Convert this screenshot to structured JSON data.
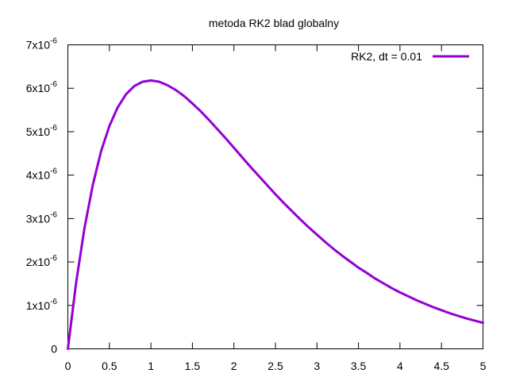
{
  "chart_data": {
    "type": "line",
    "title": "metoda  RK2 blad globalny",
    "xlabel": "",
    "ylabel": "",
    "xlim": [
      0,
      5
    ],
    "ylim": [
      0,
      7e-06
    ],
    "grid": false,
    "legend_position": "top-right",
    "x_ticks": [
      {
        "value": 0,
        "label": "0"
      },
      {
        "value": 0.5,
        "label": "0.5"
      },
      {
        "value": 1,
        "label": "1"
      },
      {
        "value": 1.5,
        "label": "1.5"
      },
      {
        "value": 2,
        "label": "2"
      },
      {
        "value": 2.5,
        "label": "2.5"
      },
      {
        "value": 3,
        "label": "3"
      },
      {
        "value": 3.5,
        "label": "3.5"
      },
      {
        "value": 4,
        "label": "4"
      },
      {
        "value": 4.5,
        "label": "4.5"
      },
      {
        "value": 5,
        "label": "5"
      }
    ],
    "y_ticks": [
      {
        "value": 0,
        "mantissa": "0",
        "exp": ""
      },
      {
        "value": 1e-06,
        "mantissa": "1x10",
        "exp": "-6"
      },
      {
        "value": 2e-06,
        "mantissa": "2x10",
        "exp": "-6"
      },
      {
        "value": 3e-06,
        "mantissa": "3x10",
        "exp": "-6"
      },
      {
        "value": 4e-06,
        "mantissa": "4x10",
        "exp": "-6"
      },
      {
        "value": 5e-06,
        "mantissa": "5x10",
        "exp": "-6"
      },
      {
        "value": 6e-06,
        "mantissa": "6x10",
        "exp": "-6"
      },
      {
        "value": 7e-06,
        "mantissa": "7x10",
        "exp": "-6"
      }
    ],
    "series": [
      {
        "name": "RK2, dt = 0.01",
        "color": "#9400d3",
        "x": [
          0,
          0.1,
          0.2,
          0.3,
          0.4,
          0.5,
          0.6,
          0.7,
          0.8,
          0.9,
          1.0,
          1.1,
          1.2,
          1.3,
          1.4,
          1.5,
          1.6,
          1.7,
          1.8,
          1.9,
          2.0,
          2.1,
          2.2,
          2.3,
          2.4,
          2.5,
          2.6,
          2.7,
          2.8,
          2.9,
          3.0,
          3.1,
          3.2,
          3.3,
          3.4,
          3.5,
          3.6,
          3.7,
          3.8,
          3.9,
          4.0,
          4.1,
          4.2,
          4.3,
          4.4,
          4.5,
          4.6,
          4.7,
          4.8,
          4.9,
          5.0
        ],
        "y": [
          0,
          1.53e-06,
          2.78e-06,
          3.77e-06,
          4.55e-06,
          5.13e-06,
          5.56e-06,
          5.86e-06,
          6.05e-06,
          6.15e-06,
          6.18e-06,
          6.15e-06,
          6.07e-06,
          5.96e-06,
          5.82e-06,
          5.65e-06,
          5.47e-06,
          5.27e-06,
          5.06e-06,
          4.85e-06,
          4.63e-06,
          4.41e-06,
          4.19e-06,
          3.98e-06,
          3.77e-06,
          3.56e-06,
          3.36e-06,
          3.17e-06,
          2.98e-06,
          2.8e-06,
          2.63e-06,
          2.46e-06,
          2.3e-06,
          2.15e-06,
          2.01e-06,
          1.87e-06,
          1.75e-06,
          1.62e-06,
          1.51e-06,
          1.4e-06,
          1.3e-06,
          1.21e-06,
          1.12e-06,
          1.04e-06,
          9.6e-07,
          8.9e-07,
          8.2e-07,
          7.6e-07,
          7e-07,
          6.5e-07,
          6e-07
        ]
      }
    ]
  }
}
